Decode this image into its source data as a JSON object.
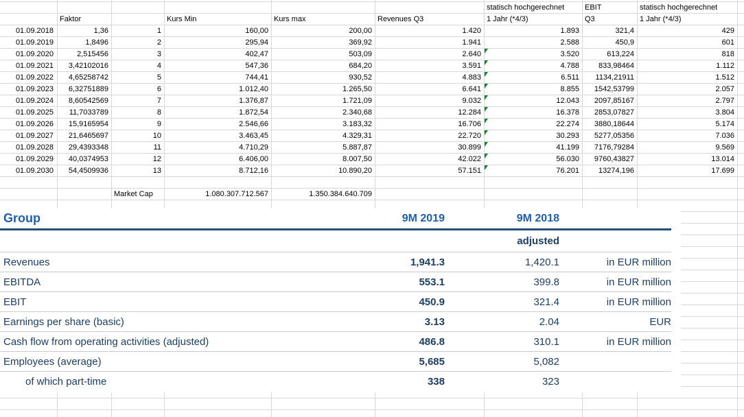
{
  "colors": {
    "grid_line": "#d8d8d8",
    "sheet_text": "#000000",
    "indicator_green": "#1f7a33",
    "report_blue": "#1e5fad",
    "report_navy": "#1d3d63",
    "report_rule": "#1f4e79",
    "report_separator": "#c9c9c9"
  },
  "spreadsheet": {
    "header_row1": {
      "g": "statisch hochgerechnet",
      "h": "EBIT",
      "i": "statisch hochgerechnet"
    },
    "header_row2": {
      "b": "Faktor",
      "d": "Kurs Min",
      "e": "Kurs max",
      "f": "Revenues Q3",
      "g": "1 Jahr (*4/3)",
      "h": "Q3",
      "i": "1 Jahr (*4/3)"
    },
    "rows": [
      {
        "date": "01.09.2018",
        "faktor": "1,36",
        "index": "1",
        "kurs_min": "160,00",
        "kurs_max": "200,00",
        "revenues_q3": "1.420",
        "revenues_year": "1.893",
        "ebit_q3": "321,4",
        "ebit_year": "429",
        "indicator": false
      },
      {
        "date": "01.09.2019",
        "faktor": "1,8496",
        "index": "2",
        "kurs_min": "295,94",
        "kurs_max": "369,92",
        "revenues_q3": "1.941",
        "revenues_year": "2.588",
        "ebit_q3": "450,9",
        "ebit_year": "601",
        "indicator": false
      },
      {
        "date": "01.09.2020",
        "faktor": "2,515456",
        "index": "3",
        "kurs_min": "402,47",
        "kurs_max": "503,09",
        "revenues_q3": "2.640",
        "revenues_year": "3.520",
        "ebit_q3": "613,224",
        "ebit_year": "818",
        "indicator": true
      },
      {
        "date": "01.09.2021",
        "faktor": "3,42102016",
        "index": "4",
        "kurs_min": "547,36",
        "kurs_max": "684,20",
        "revenues_q3": "3.591",
        "revenues_year": "4.788",
        "ebit_q3": "833,98464",
        "ebit_year": "1.112",
        "indicator": true
      },
      {
        "date": "01.09.2022",
        "faktor": "4,65258742",
        "index": "5",
        "kurs_min": "744,41",
        "kurs_max": "930,52",
        "revenues_q3": "4.883",
        "revenues_year": "6.511",
        "ebit_q3": "1134,21911",
        "ebit_year": "1.512",
        "indicator": true
      },
      {
        "date": "01.09.2023",
        "faktor": "6,32751889",
        "index": "6",
        "kurs_min": "1.012,40",
        "kurs_max": "1.265,50",
        "revenues_q3": "6.641",
        "revenues_year": "8.855",
        "ebit_q3": "1542,53799",
        "ebit_year": "2.057",
        "indicator": true
      },
      {
        "date": "01.09.2024",
        "faktor": "8,60542569",
        "index": "7",
        "kurs_min": "1.376,87",
        "kurs_max": "1.721,09",
        "revenues_q3": "9.032",
        "revenues_year": "12.043",
        "ebit_q3": "2097,85167",
        "ebit_year": "2.797",
        "indicator": true
      },
      {
        "date": "01.09.2025",
        "faktor": "11,7033789",
        "index": "8",
        "kurs_min": "1.872,54",
        "kurs_max": "2.340,68",
        "revenues_q3": "12.284",
        "revenues_year": "16.378",
        "ebit_q3": "2853,07827",
        "ebit_year": "3.804",
        "indicator": true
      },
      {
        "date": "01.09.2026",
        "faktor": "15,9165954",
        "index": "9",
        "kurs_min": "2.546,66",
        "kurs_max": "3.183,32",
        "revenues_q3": "16.706",
        "revenues_year": "22.274",
        "ebit_q3": "3880,18644",
        "ebit_year": "5.174",
        "indicator": true
      },
      {
        "date": "01.09.2027",
        "faktor": "21,6465697",
        "index": "10",
        "kurs_min": "3.463,45",
        "kurs_max": "4.329,31",
        "revenues_q3": "22.720",
        "revenues_year": "30.293",
        "ebit_q3": "5277,05356",
        "ebit_year": "7.036",
        "indicator": true
      },
      {
        "date": "01.09.2028",
        "faktor": "29,4393348",
        "index": "11",
        "kurs_min": "4.710,29",
        "kurs_max": "5.887,87",
        "revenues_q3": "30.899",
        "revenues_year": "41.199",
        "ebit_q3": "7176,79284",
        "ebit_year": "9.569",
        "indicator": true
      },
      {
        "date": "01.09.2029",
        "faktor": "40,0374953",
        "index": "12",
        "kurs_min": "6.406,00",
        "kurs_max": "8.007,50",
        "revenues_q3": "42.022",
        "revenues_year": "56.030",
        "ebit_q3": "9760,43827",
        "ebit_year": "13.014",
        "indicator": true
      },
      {
        "date": "01.09.2030",
        "faktor": "54,4509936",
        "index": "13",
        "kurs_min": "8.712,16",
        "kurs_max": "10.890,20",
        "revenues_q3": "57.151",
        "revenues_year": "76.201",
        "ebit_q3": "13274,196",
        "ebit_year": "17.699",
        "indicator": true
      }
    ],
    "market_cap": {
      "label": "Market Cap",
      "kurs_min": "1.080.307.712.567",
      "kurs_max": "1.350.384.640.709"
    }
  },
  "report": {
    "title": "Group",
    "col_2019": "9M 2019",
    "col_2018": "9M 2018",
    "adjusted_label": "adjusted",
    "rows": [
      {
        "label": "Revenues",
        "v2019": "1,941.3",
        "v2018": "1,420.1",
        "unit": "in EUR million",
        "indent": false
      },
      {
        "label": "EBITDA",
        "v2019": "553.1",
        "v2018": "399.8",
        "unit": "in EUR million",
        "indent": false
      },
      {
        "label": "EBIT",
        "v2019": "450.9",
        "v2018": "321.4",
        "unit": "in EUR million",
        "indent": false
      },
      {
        "label": "Earnings per share (basic)",
        "v2019": "3.13",
        "v2018": "2.04",
        "unit": "EUR",
        "indent": false
      },
      {
        "label": "Cash flow from operating activities (adjusted)",
        "v2019": "486.8",
        "v2018": "310.1",
        "unit": "in EUR million",
        "indent": false
      },
      {
        "label": "Employees (average)",
        "v2019": "5,685",
        "v2018": "5,082",
        "unit": "",
        "indent": false
      },
      {
        "label": "of which part-time",
        "v2019": "338",
        "v2018": "323",
        "unit": "",
        "indent": true
      }
    ]
  }
}
